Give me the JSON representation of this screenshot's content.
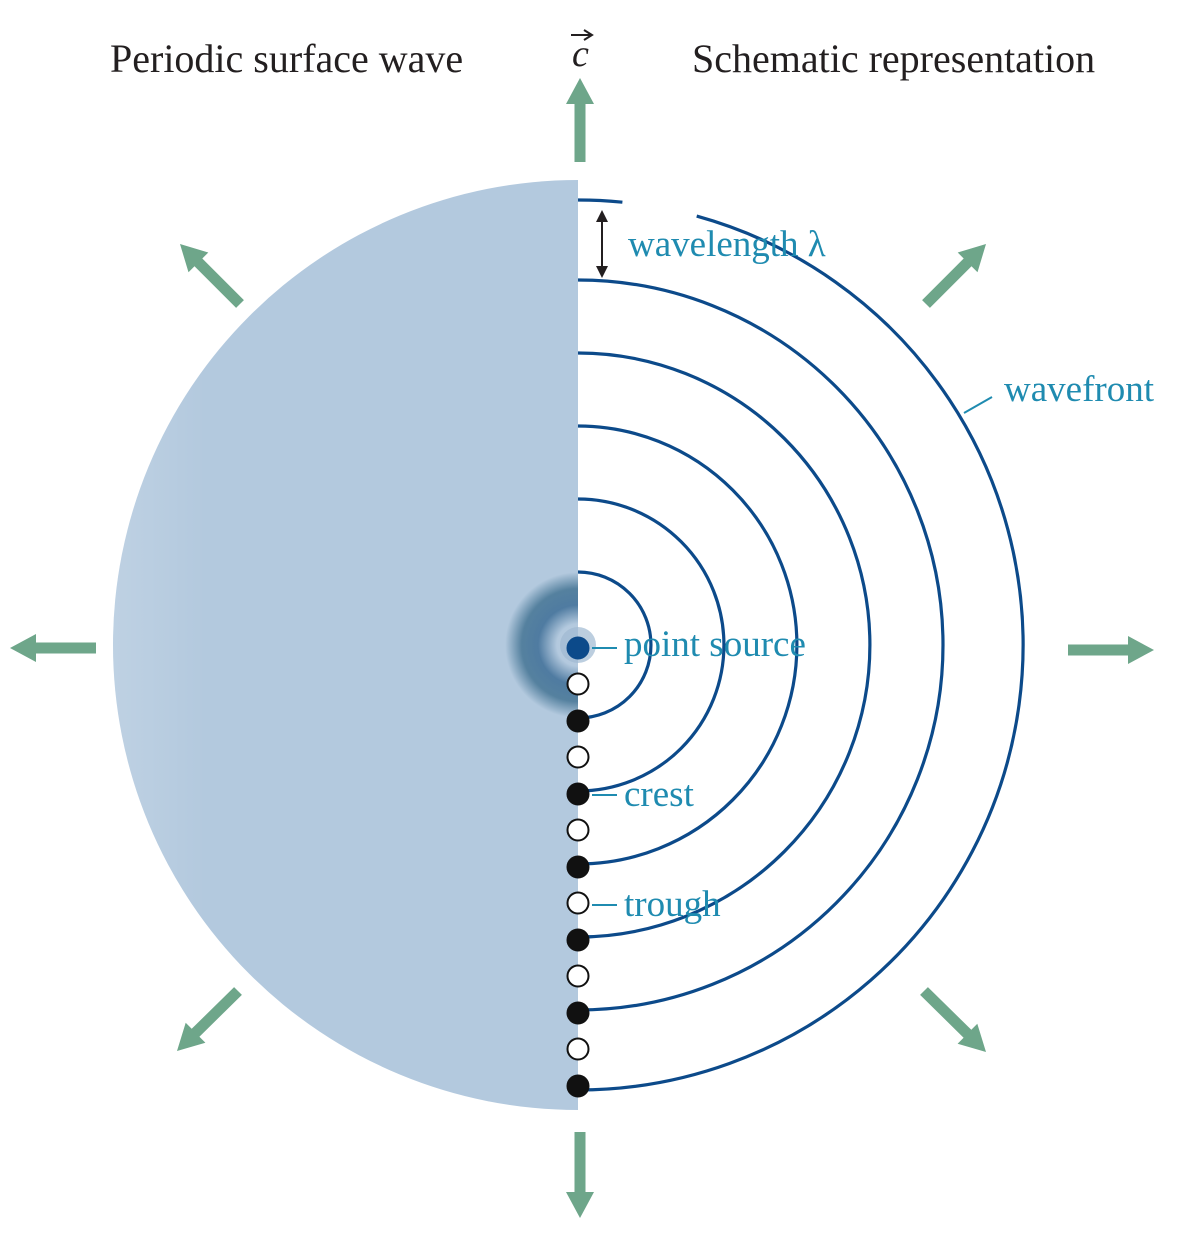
{
  "titles": {
    "left": "Periodic surface wave",
    "right": "Schematic representation",
    "velocity_symbol": "c"
  },
  "labels": {
    "wavelength": "wavelength λ",
    "wavefront": "wavefront",
    "point_source": "point source",
    "crest": "crest",
    "trough": "trough"
  },
  "colors": {
    "arrow": "#6ea68a",
    "wavefront_line": "#0c4a8a",
    "label_text": "#1f8bb0",
    "source_dot": "#0c4a8a",
    "crest_dot": "#111111",
    "trough_dot": "#ffffff",
    "wave_light": "#b3c9de",
    "wave_dark": "#4f7ba1"
  },
  "icons": {
    "propagation_arrows": "arrow-icon",
    "wavelength_marker": "double-headed-arrow-icon"
  }
}
